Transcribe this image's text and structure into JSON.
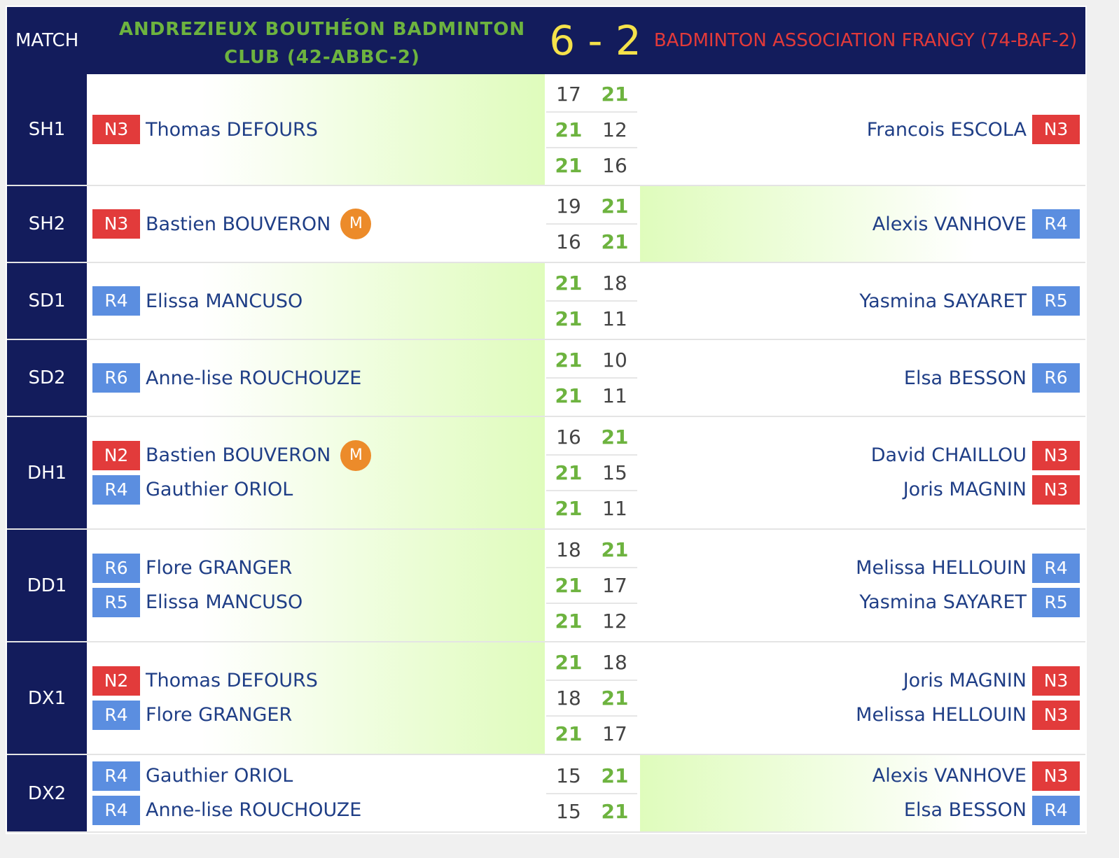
{
  "header": {
    "match_label": "MATCH",
    "team1": "ANDREZIEUX BOUTHÉON BADMINTON CLUB (42-ABBC-2)",
    "score": "6 - 2",
    "team2": "BADMINTON ASSOCIATION FRANGY (74-BAF-2)"
  },
  "colors": {
    "header_bg": "#131c5c",
    "team1": "#6db33f",
    "team2": "#e23a3a",
    "score": "#f5e24a",
    "winner_highlight": "#dffcbc",
    "rank_red": "#e23b3b",
    "rank_blue": "#5b8ee0",
    "captain_badge": "#ec8b2a"
  },
  "matches": [
    {
      "code": "SH1",
      "winner": "left",
      "left": [
        {
          "rank": "N3",
          "rank_color": "red",
          "name": "Thomas DEFOURS",
          "captain": false
        }
      ],
      "right": [
        {
          "rank": "N3",
          "rank_color": "red",
          "name": "Francois ESCOLA"
        }
      ],
      "sets": [
        [
          "17",
          "21"
        ],
        [
          "21",
          "12"
        ],
        [
          "21",
          "16"
        ]
      ]
    },
    {
      "code": "SH2",
      "winner": "right",
      "left": [
        {
          "rank": "N3",
          "rank_color": "red",
          "name": "Bastien BOUVERON",
          "captain": true,
          "captain_label": "M"
        }
      ],
      "right": [
        {
          "rank": "R4",
          "rank_color": "blue",
          "name": "Alexis VANHOVE"
        }
      ],
      "sets": [
        [
          "19",
          "21"
        ],
        [
          "16",
          "21"
        ]
      ]
    },
    {
      "code": "SD1",
      "winner": "left",
      "left": [
        {
          "rank": "R4",
          "rank_color": "blue",
          "name": "Elissa MANCUSO",
          "captain": false
        }
      ],
      "right": [
        {
          "rank": "R5",
          "rank_color": "blue",
          "name": "Yasmina SAYARET"
        }
      ],
      "sets": [
        [
          "21",
          "18"
        ],
        [
          "21",
          "11"
        ]
      ]
    },
    {
      "code": "SD2",
      "winner": "left",
      "left": [
        {
          "rank": "R6",
          "rank_color": "blue",
          "name": "Anne-lise ROUCHOUZE",
          "captain": false
        }
      ],
      "right": [
        {
          "rank": "R6",
          "rank_color": "blue",
          "name": "Elsa BESSON"
        }
      ],
      "sets": [
        [
          "21",
          "10"
        ],
        [
          "21",
          "11"
        ]
      ]
    },
    {
      "code": "DH1",
      "winner": "left",
      "left": [
        {
          "rank": "N2",
          "rank_color": "red",
          "name": "Bastien BOUVERON",
          "captain": true,
          "captain_label": "M"
        },
        {
          "rank": "R4",
          "rank_color": "blue",
          "name": "Gauthier ORIOL",
          "captain": false
        }
      ],
      "right": [
        {
          "rank": "N3",
          "rank_color": "red",
          "name": "David CHAILLOU"
        },
        {
          "rank": "N3",
          "rank_color": "red",
          "name": "Joris MAGNIN"
        }
      ],
      "sets": [
        [
          "16",
          "21"
        ],
        [
          "21",
          "15"
        ],
        [
          "21",
          "11"
        ]
      ]
    },
    {
      "code": "DD1",
      "winner": "left",
      "left": [
        {
          "rank": "R6",
          "rank_color": "blue",
          "name": "Flore GRANGER",
          "captain": false
        },
        {
          "rank": "R5",
          "rank_color": "blue",
          "name": "Elissa MANCUSO",
          "captain": false
        }
      ],
      "right": [
        {
          "rank": "R4",
          "rank_color": "blue",
          "name": "Melissa HELLOUIN"
        },
        {
          "rank": "R5",
          "rank_color": "blue",
          "name": "Yasmina SAYARET"
        }
      ],
      "sets": [
        [
          "18",
          "21"
        ],
        [
          "21",
          "17"
        ],
        [
          "21",
          "12"
        ]
      ]
    },
    {
      "code": "DX1",
      "winner": "left",
      "left": [
        {
          "rank": "N2",
          "rank_color": "red",
          "name": "Thomas DEFOURS",
          "captain": false
        },
        {
          "rank": "R4",
          "rank_color": "blue",
          "name": "Flore GRANGER",
          "captain": false
        }
      ],
      "right": [
        {
          "rank": "N3",
          "rank_color": "red",
          "name": "Joris MAGNIN"
        },
        {
          "rank": "N3",
          "rank_color": "red",
          "name": "Melissa HELLOUIN"
        }
      ],
      "sets": [
        [
          "21",
          "18"
        ],
        [
          "18",
          "21"
        ],
        [
          "21",
          "17"
        ]
      ]
    },
    {
      "code": "DX2",
      "winner": "right",
      "left": [
        {
          "rank": "R4",
          "rank_color": "blue",
          "name": "Gauthier ORIOL",
          "captain": false
        },
        {
          "rank": "R4",
          "rank_color": "blue",
          "name": "Anne-lise ROUCHOUZE",
          "captain": false
        }
      ],
      "right": [
        {
          "rank": "N3",
          "rank_color": "red",
          "name": "Alexis VANHOVE"
        },
        {
          "rank": "R4",
          "rank_color": "blue",
          "name": "Elsa BESSON"
        }
      ],
      "sets": [
        [
          "15",
          "21"
        ],
        [
          "15",
          "21"
        ]
      ]
    }
  ]
}
